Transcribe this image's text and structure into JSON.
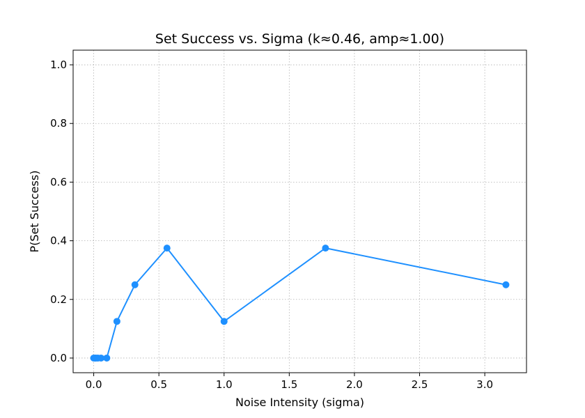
{
  "chart_data": {
    "type": "line",
    "title": "Set Success vs. Sigma (k≈0.46, amp≈1.00)",
    "xlabel": "Noise Intensity (sigma)",
    "ylabel": "P(Set Success)",
    "xlim": [
      -0.158,
      3.32
    ],
    "ylim": [
      -0.05,
      1.05
    ],
    "x_ticks": [
      0.0,
      0.5,
      1.0,
      1.5,
      2.0,
      2.5,
      3.0
    ],
    "x_tick_labels": [
      "0.0",
      "0.5",
      "1.0",
      "1.5",
      "2.0",
      "2.5",
      "3.0"
    ],
    "y_ticks": [
      0.0,
      0.2,
      0.4,
      0.6,
      0.8,
      1.0
    ],
    "y_tick_labels": [
      "0.0",
      "0.2",
      "0.4",
      "0.6",
      "0.8",
      "1.0"
    ],
    "grid": true,
    "series": [
      {
        "color": "#1e90ff",
        "x": [
          0.0,
          0.01,
          0.018,
          0.032,
          0.056,
          0.1,
          0.178,
          0.316,
          0.562,
          1.0,
          1.778,
          3.162
        ],
        "y": [
          0.0,
          0.0,
          0.0,
          0.0,
          0.0,
          0.0,
          0.125,
          0.25,
          0.375,
          0.125,
          0.375,
          0.25
        ]
      }
    ]
  }
}
